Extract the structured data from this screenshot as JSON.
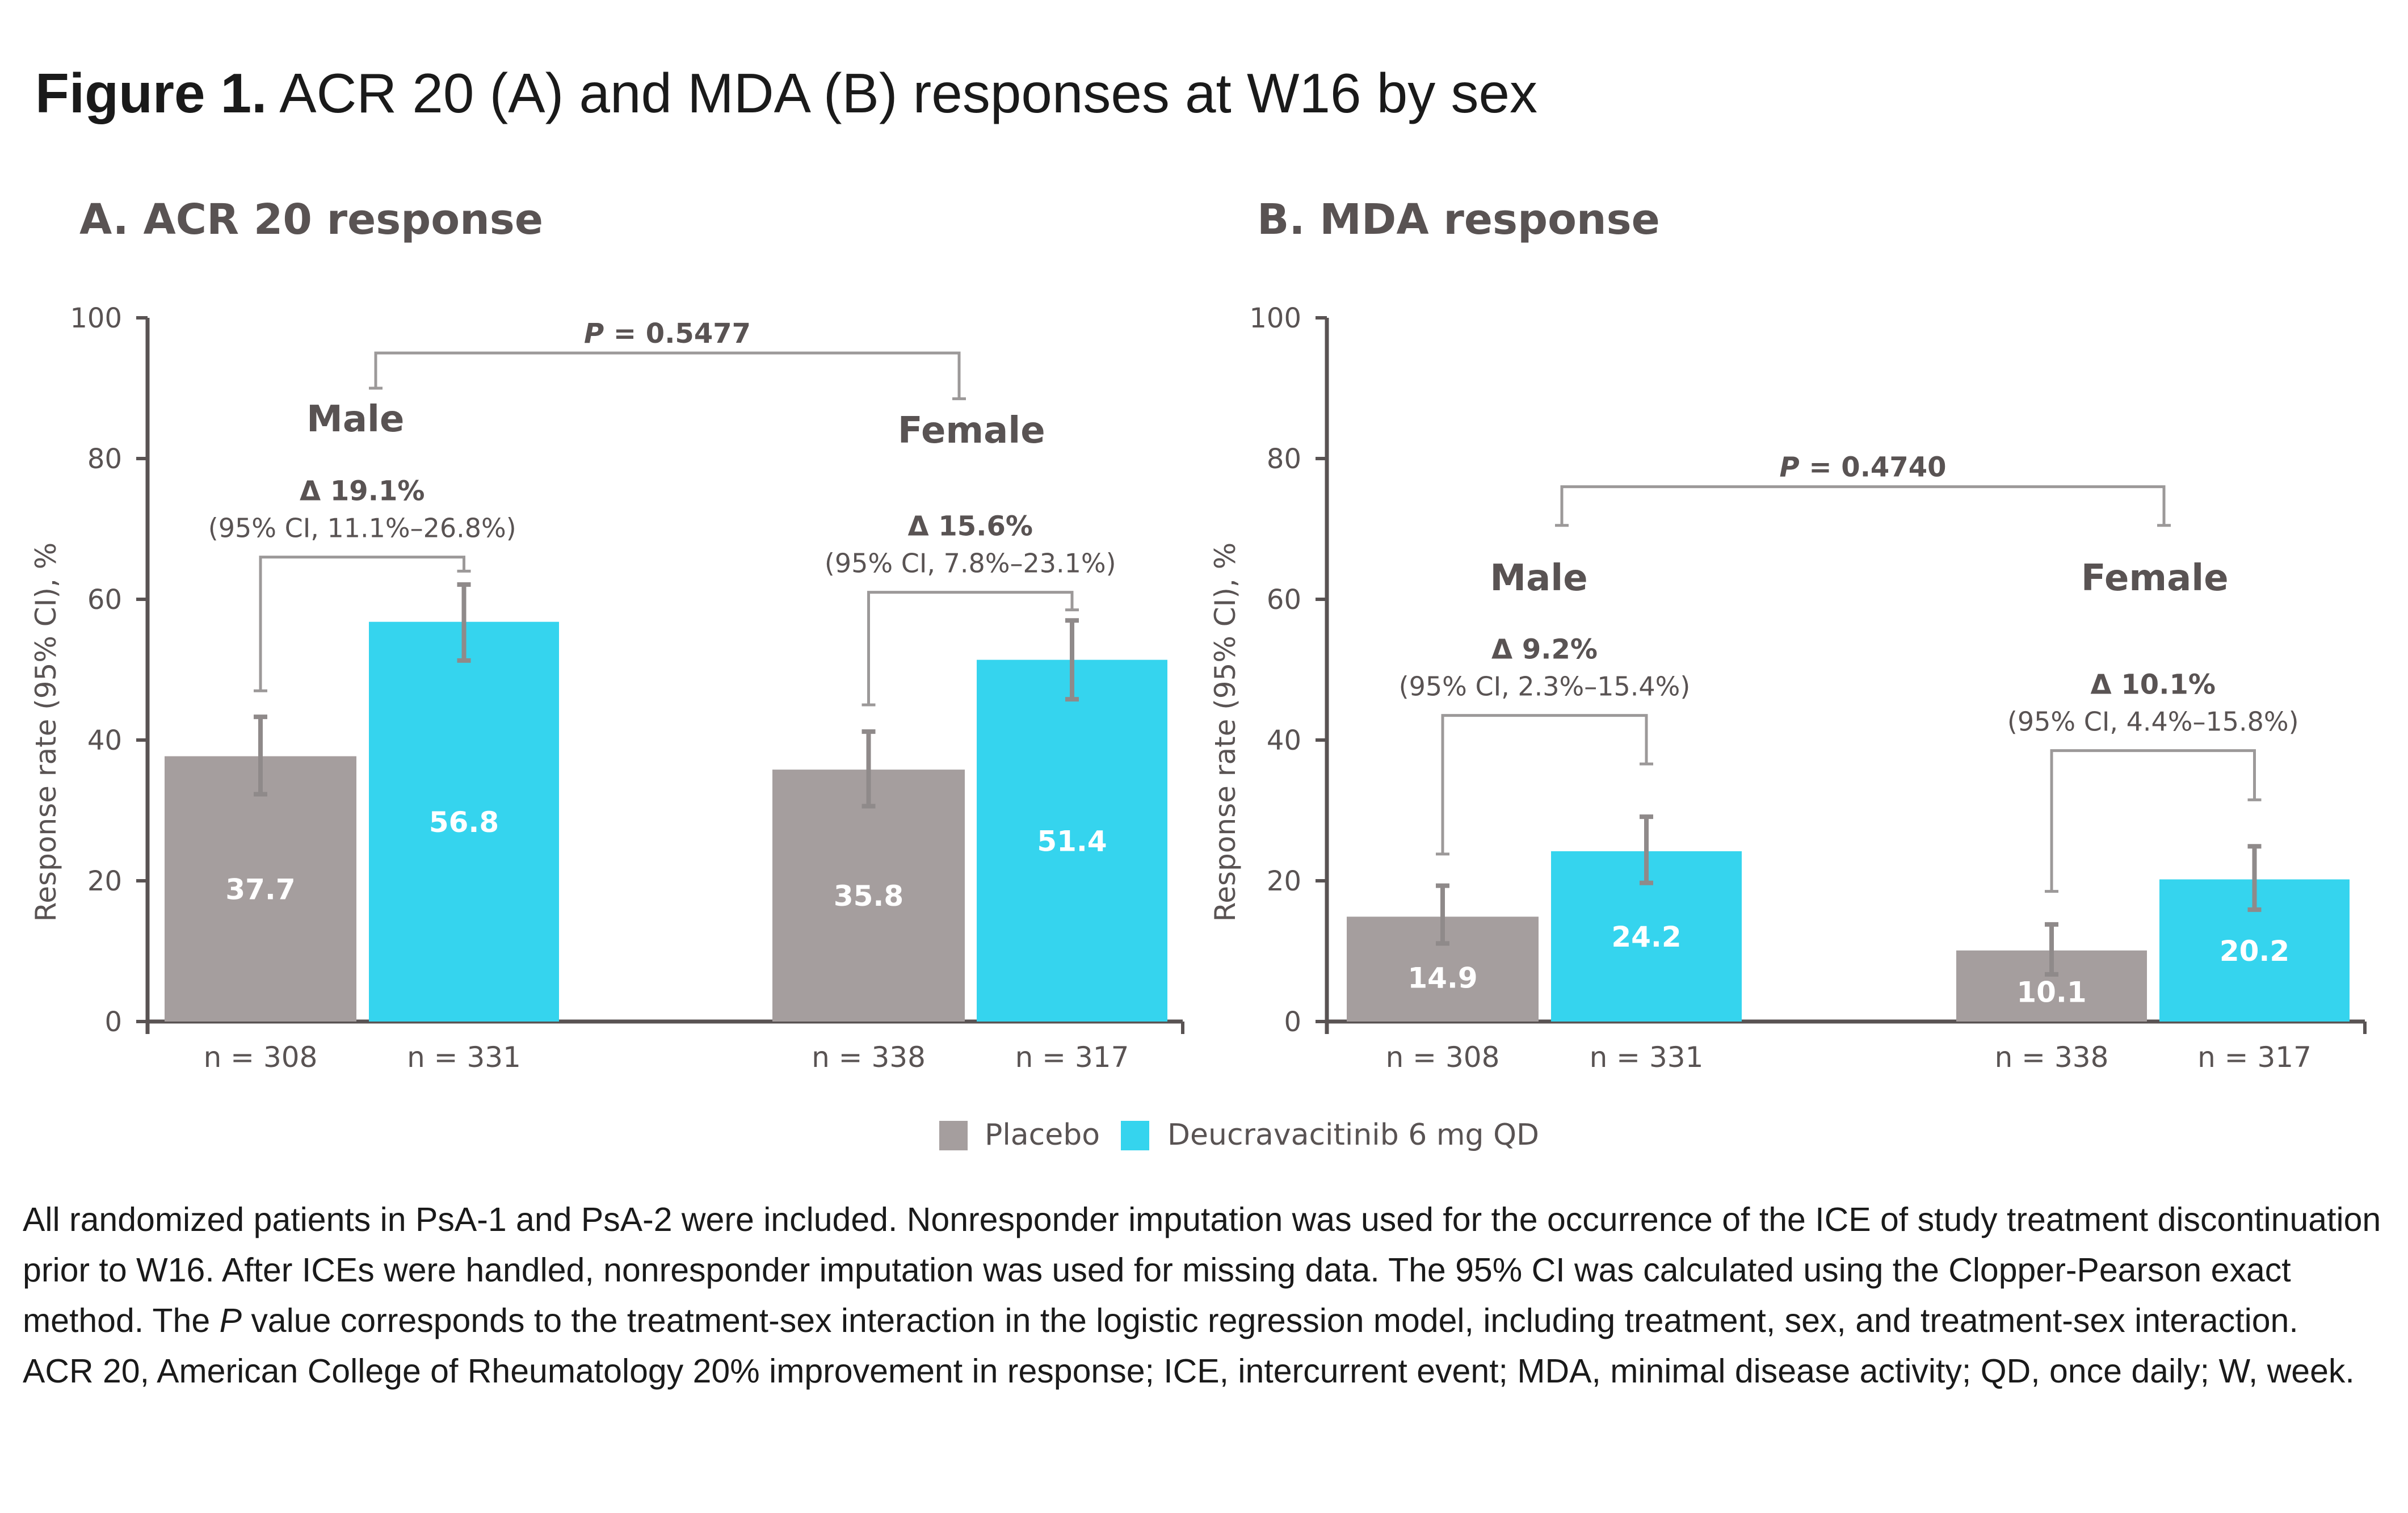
{
  "figure": {
    "label": "Figure 1.",
    "title": "ACR 20 (A) and MDA (B) responses at W16 by sex"
  },
  "legend": {
    "placement": "bottom-center",
    "items": [
      {
        "name": "Placebo",
        "color": "#a59e9e"
      },
      {
        "name": "Deucravacitinib 6 mg QD",
        "color": "#35d4ee"
      }
    ]
  },
  "colors": {
    "placebo": "#a59e9e",
    "deucravacitinib": "#35d4ee",
    "errorbar": "#8f8a8a",
    "bracket": "#9c9999",
    "axis": "#595353",
    "text": "#595353"
  },
  "chart_data": [
    {
      "type": "bar",
      "panel": "A",
      "title": "A. ACR 20 response",
      "xlabel": "",
      "ylabel": "Response rate (95% CI), %",
      "ylim": [
        0,
        100
      ],
      "yticks": [
        0,
        20,
        40,
        60,
        80,
        100
      ],
      "grid": false,
      "p_value": {
        "label_prefix": "P",
        "text": " = 0.5477",
        "bracket_height": 95
      },
      "groups": [
        {
          "name": "Male",
          "delta": "Δ 19.1%",
          "ci": "(95% CI, 11.1%–26.8%)",
          "label_value_y": 85,
          "bracket": {
            "height": 66,
            "left_end": 47,
            "right_end": 64
          },
          "p_bracket_end": 90,
          "bars": [
            {
              "series": "Placebo",
              "value": 37.7,
              "ci_low": 32.3,
              "ci_high": 43.3,
              "n": "n = 308"
            },
            {
              "series": "Deucravacitinib 6 mg QD",
              "value": 56.8,
              "ci_low": 51.3,
              "ci_high": 62.1,
              "n": "n = 331"
            }
          ]
        },
        {
          "name": "Female",
          "delta": "Δ 15.6%",
          "ci": "(95% CI, 7.8%–23.1%)",
          "label_value_y": 83.5,
          "bracket": {
            "height": 61,
            "left_end": 45,
            "right_end": 58.5
          },
          "p_bracket_end": 88.5,
          "bars": [
            {
              "series": "Placebo",
              "value": 35.8,
              "ci_low": 30.6,
              "ci_high": 41.2,
              "n": "n = 338"
            },
            {
              "series": "Deucravacitinib 6 mg QD",
              "value": 51.4,
              "ci_low": 45.8,
              "ci_high": 57.0,
              "n": "n = 317"
            }
          ]
        }
      ]
    },
    {
      "type": "bar",
      "panel": "B",
      "title": "B. MDA response",
      "xlabel": "",
      "ylabel": "Response rate (95% CI), %",
      "ylim": [
        0,
        100
      ],
      "yticks": [
        0,
        20,
        40,
        60,
        80,
        100
      ],
      "grid": false,
      "p_value": {
        "label_prefix": "P",
        "text": " = 0.4740",
        "bracket_height": 76
      },
      "groups": [
        {
          "name": "Male",
          "delta": "Δ 9.2%",
          "ci": "(95% CI, 2.3%–15.4%)",
          "bracket": {
            "height": 43.5,
            "left_end": 23.8,
            "right_end": 36.6
          },
          "p_bracket_end": 70.5,
          "bars": [
            {
              "series": "Placebo",
              "value": 14.9,
              "ci_low": 11.1,
              "ci_high": 19.3,
              "n": "n = 308"
            },
            {
              "series": "Deucravacitinib 6 mg QD",
              "value": 24.2,
              "ci_low": 19.7,
              "ci_high": 29.1,
              "n": "n = 331"
            }
          ]
        },
        {
          "name": "Female",
          "delta": "Δ 10.1%",
          "ci": "(95% CI, 4.4%–15.8%)",
          "bracket": {
            "height": 38.5,
            "left_end": 18.5,
            "right_end": 31.5
          },
          "p_bracket_end": 70.5,
          "bars": [
            {
              "series": "Placebo",
              "value": 10.1,
              "ci_low": 6.7,
              "ci_high": 13.8,
              "n": "n = 338"
            },
            {
              "series": "Deucravacitinib 6 mg QD",
              "value": 20.2,
              "ci_low": 15.9,
              "ci_high": 24.9,
              "n": "n = 317"
            }
          ]
        }
      ]
    }
  ],
  "footnote": {
    "para1_a": "All randomized patients in PsA-1 and PsA-2 were included. Nonresponder imputation was used for the occurrence of the ICE of study treatment discontinuation prior to W16. After ICEs were handled, nonresponder imputation was used for missing data. The 95% CI was calculated using the Clopper-Pearson exact method. The ",
    "para1_italic": "P",
    "para1_b": " value corresponds to the treatment-sex interaction in the logistic regression model, including treatment, sex, and treatment-sex interaction.",
    "para2": "ACR 20, American College of Rheumatology 20% improvement in response; ICE, intercurrent event; MDA, minimal disease activity; QD, once daily; W, week."
  }
}
